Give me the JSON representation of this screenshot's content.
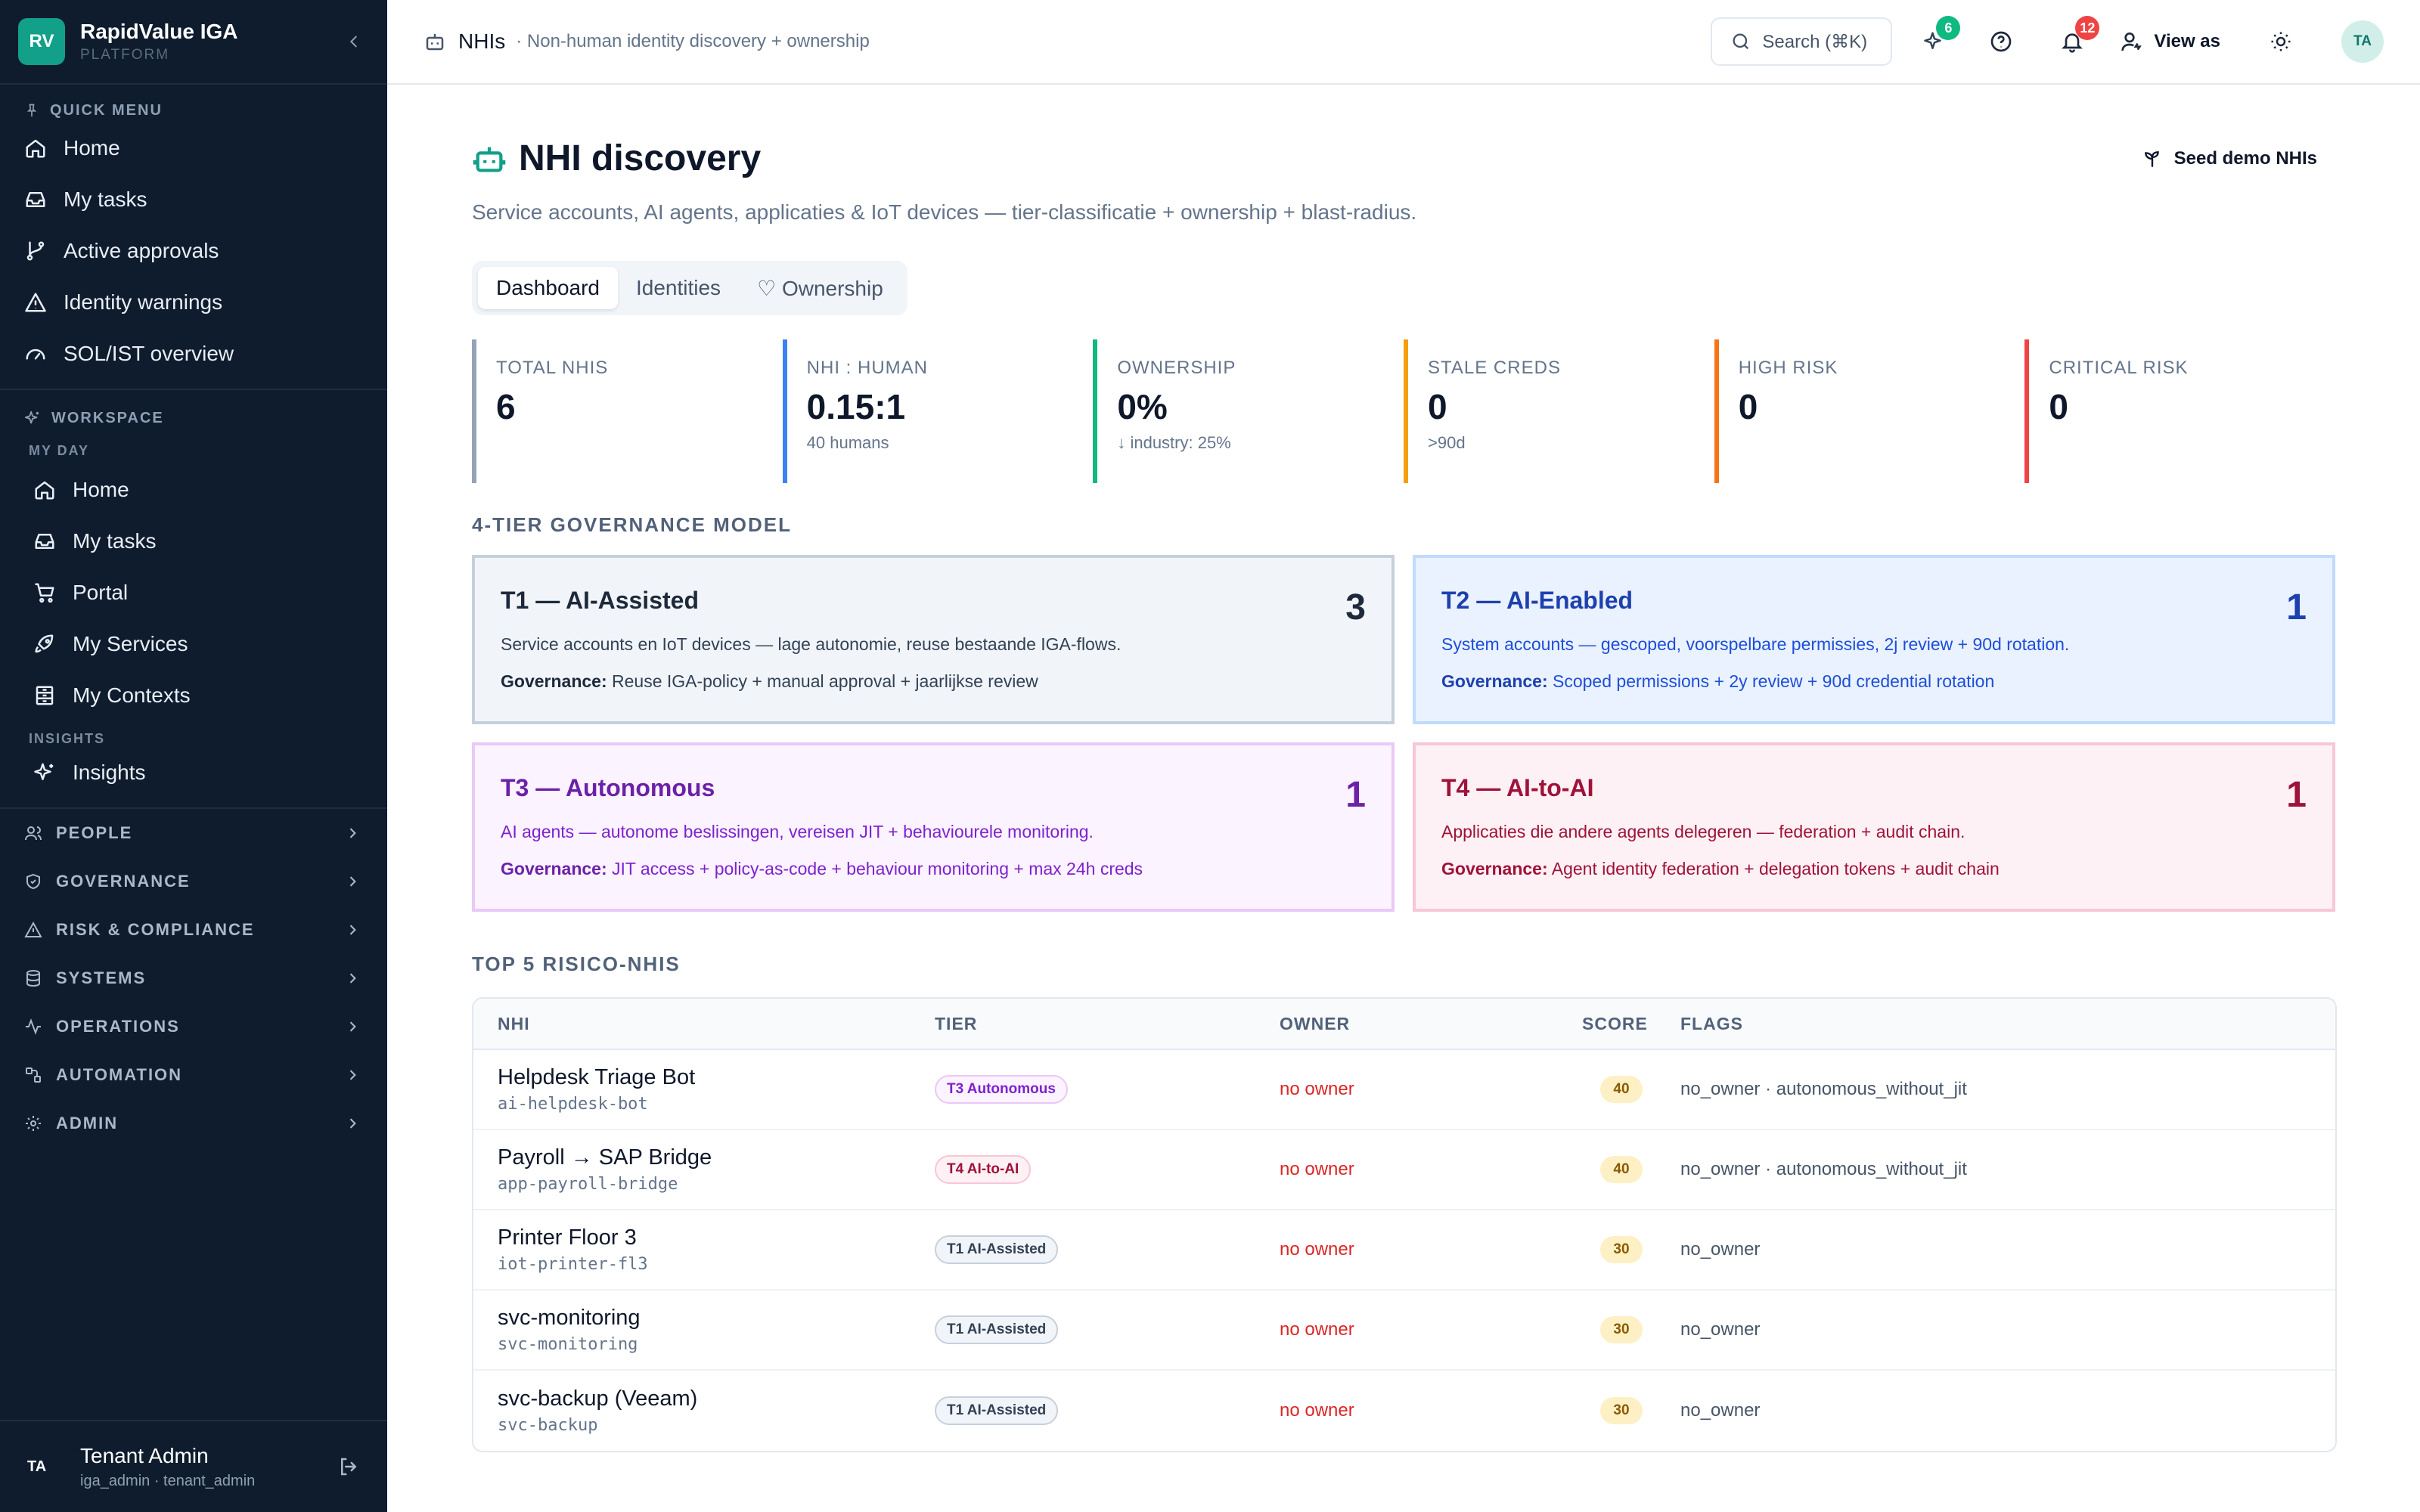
{
  "brand": {
    "logo": "RV",
    "name": "RapidValue IGA",
    "sub": "PLATFORM"
  },
  "quick_menu": {
    "title": "QUICK MENU",
    "items": [
      {
        "label": "Home",
        "icon": "home-icon"
      },
      {
        "label": "My tasks",
        "icon": "inbox-icon"
      },
      {
        "label": "Active approvals",
        "icon": "branch-icon"
      },
      {
        "label": "Identity warnings",
        "icon": "warning-icon"
      },
      {
        "label": "SOL/IST overview",
        "icon": "gauge-icon"
      }
    ]
  },
  "workspace": {
    "title": "WORKSPACE",
    "my_day_label": "MY DAY",
    "my_day": [
      {
        "label": "Home"
      },
      {
        "label": "My tasks"
      },
      {
        "label": "Portal"
      },
      {
        "label": "My Services"
      },
      {
        "label": "My Contexts"
      }
    ],
    "insights_label": "INSIGHTS",
    "insights": [
      {
        "label": "Insights"
      }
    ]
  },
  "groups": [
    "PEOPLE",
    "GOVERNANCE",
    "RISK & COMPLIANCE",
    "SYSTEMS",
    "OPERATIONS",
    "AUTOMATION",
    "ADMIN"
  ],
  "user": {
    "initials": "TA",
    "name": "Tenant Admin",
    "role": "iga_admin · tenant_admin"
  },
  "topbar": {
    "title": "NHIs",
    "desc": "· Non-human identity discovery + ownership",
    "search": "Search (⌘K)",
    "ai_badge": "6",
    "notif_badge": "12",
    "view_as": "View as",
    "avatar": "TA"
  },
  "page": {
    "title": "NHI discovery",
    "subtitle": "Service accounts, AI agents, applicaties & IoT devices — tier-classificatie + ownership + blast-radius.",
    "seed": "Seed demo NHIs",
    "tabs": [
      {
        "label": "Dashboard"
      },
      {
        "label": "Identities"
      },
      {
        "label": "♡ Ownership"
      }
    ]
  },
  "stats": [
    {
      "label": "TOTAL NHIS",
      "value": "6",
      "sub": "",
      "color": "#94a3b8"
    },
    {
      "label": "NHI : HUMAN",
      "value": "0.15:1",
      "sub": "40 humans",
      "color": "#3b82f6"
    },
    {
      "label": "OWNERSHIP",
      "value": "0%",
      "sub": "↓ industry: 25%",
      "color": "#10b981"
    },
    {
      "label": "STALE CREDS",
      "value": "0",
      "sub": ">90d",
      "color": "#f59e0b"
    },
    {
      "label": "HIGH RISK",
      "value": "0",
      "sub": "",
      "color": "#f97316"
    },
    {
      "label": "CRITICAL RISK",
      "value": "0",
      "sub": "",
      "color": "#ef4444"
    }
  ],
  "governance": {
    "title": "4-TIER GOVERNANCE MODEL",
    "gov_label": "Governance:",
    "tiers": [
      {
        "name": "T1 — AI-Assisted",
        "count": "3",
        "desc": "Service accounts en IoT devices — lage autonomie, reuse bestaande IGA-flows.",
        "gov": "Reuse IGA-policy + manual approval + jaarlijkse review"
      },
      {
        "name": "T2 — AI-Enabled",
        "count": "1",
        "desc": "System accounts — gescoped, voorspelbare permissies, 2j review + 90d rotation.",
        "gov": "Scoped permissions + 2y review + 90d credential rotation"
      },
      {
        "name": "T3 — Autonomous",
        "count": "1",
        "desc": "AI agents — autonome beslissingen, vereisen JIT + behaviourele monitoring.",
        "gov": "JIT access + policy-as-code + behaviour monitoring + max 24h creds"
      },
      {
        "name": "T4 — AI-to-AI",
        "count": "1",
        "desc": "Applicaties die andere agents delegeren — federation + audit chain.",
        "gov": "Agent identity federation + delegation tokens + audit chain"
      }
    ]
  },
  "top5": {
    "title": "TOP 5 RISICO-NHIS",
    "columns": [
      "NHI",
      "TIER",
      "OWNER",
      "SCORE",
      "FLAGS"
    ],
    "rows": [
      {
        "name": "Helpdesk Triage Bot",
        "id": "ai-helpdesk-bot",
        "tier": "T3 Autonomous",
        "owner": "no owner",
        "score": "40",
        "flags": "no_owner · autonomous_without_jit"
      },
      {
        "name": "Payroll → SAP Bridge",
        "id": "app-payroll-bridge",
        "tier": "T4 AI-to-AI",
        "owner": "no owner",
        "score": "40",
        "flags": "no_owner · autonomous_without_jit"
      },
      {
        "name": "Printer Floor 3",
        "id": "iot-printer-fl3",
        "tier": "T1 AI-Assisted",
        "owner": "no owner",
        "score": "30",
        "flags": "no_owner"
      },
      {
        "name": "svc-monitoring",
        "id": "svc-monitoring",
        "tier": "T1 AI-Assisted",
        "owner": "no owner",
        "score": "30",
        "flags": "no_owner"
      },
      {
        "name": "svc-backup (Veeam)",
        "id": "svc-backup",
        "tier": "T1 AI-Assisted",
        "owner": "no owner",
        "score": "30",
        "flags": "no_owner"
      }
    ]
  }
}
